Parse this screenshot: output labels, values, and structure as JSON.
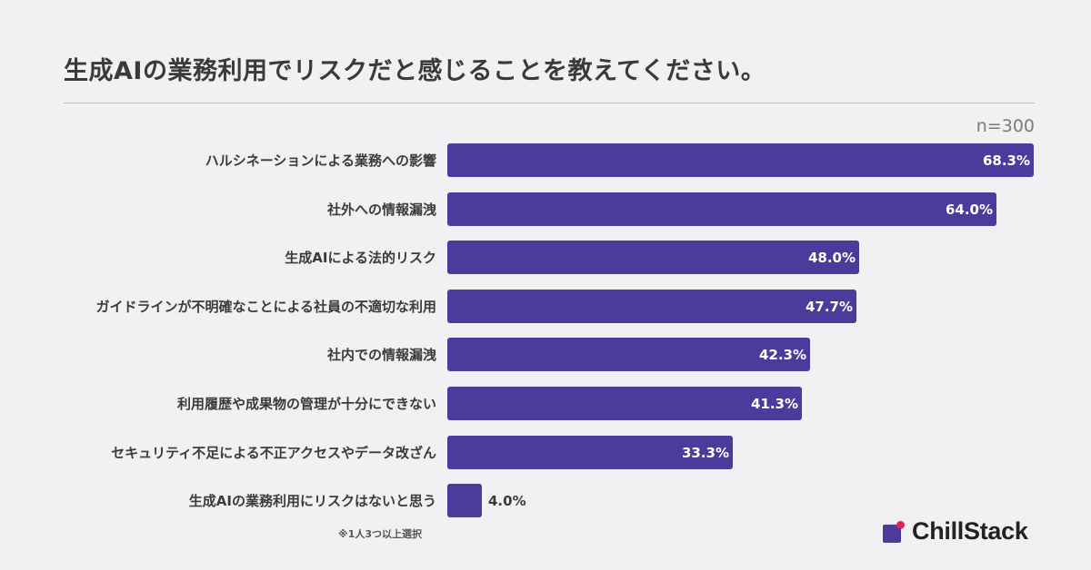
{
  "title": "生成AIの業務利用でリスクだと感じることを教えてください。",
  "sample_size": "n=300",
  "footnote": "※1人3つ以上選択",
  "brand": {
    "name": "ChillStack",
    "colors": {
      "mark": "#4c3b9b",
      "dot": "#e0245e"
    },
    "icon": "chillstack-logo-icon"
  },
  "colors": {
    "bar": "#4c3b9b",
    "background": "#f1f0f2"
  },
  "chart_data": {
    "type": "bar",
    "orientation": "horizontal",
    "title": "生成AIの業務利用でリスクだと感じることを教えてください。",
    "categories": [
      "ハルシネーションによる業務への影響",
      "社外への情報漏洩",
      "生成AIによる法的リスク",
      "ガイドラインが不明確なことによる社員の不適切な利用",
      "社内での情報漏洩",
      "利用履歴や成果物の管理が十分にできない",
      "セキュリティ不足による不正アクセスやデータ改ざん",
      "生成AIの業務利用にリスクはないと思う"
    ],
    "values": [
      68.3,
      64.0,
      48.0,
      47.7,
      42.3,
      41.3,
      33.3,
      4.0
    ],
    "value_labels": [
      "68.3%",
      "64.0%",
      "48.0%",
      "47.7%",
      "42.3%",
      "41.3%",
      "33.3%",
      "4.0%"
    ],
    "unit": "%",
    "xlim": [
      0,
      68.3
    ],
    "grid": false,
    "legend": "none"
  }
}
